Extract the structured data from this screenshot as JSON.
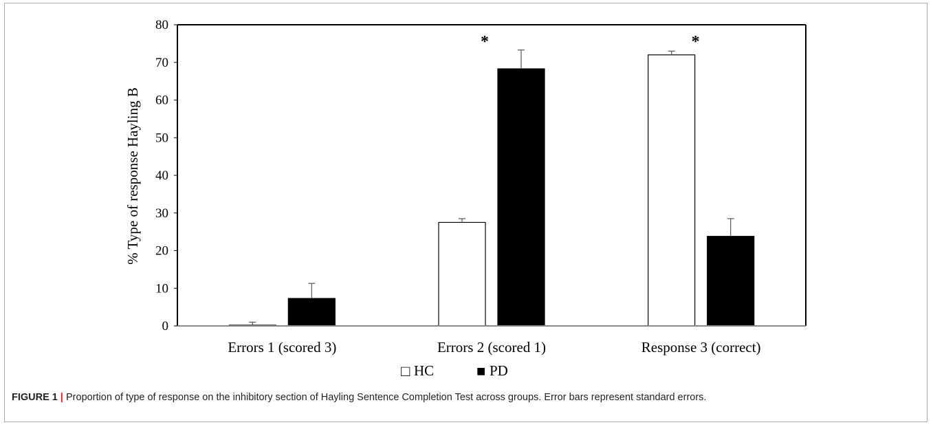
{
  "chart_data": {
    "type": "bar",
    "ylabel": "% Type of response Hayling B",
    "ylim": [
      0,
      80
    ],
    "yticks": [
      0,
      10,
      20,
      30,
      40,
      50,
      60,
      70,
      80
    ],
    "categories": [
      "Errors 1 (scored 3)",
      "Errors 2 (scored 1)",
      "Response 3 (correct)"
    ],
    "series": [
      {
        "name": "HC",
        "values": [
          0.2,
          27.5,
          72.0
        ],
        "errors": [
          0.8,
          1.0,
          1.0
        ],
        "fill": "#ffffff",
        "stroke": "#000000"
      },
      {
        "name": "PD",
        "values": [
          7.3,
          68.3,
          23.8
        ],
        "errors": [
          4.0,
          5.0,
          4.7
        ],
        "fill": "#000000",
        "stroke": "#000000"
      }
    ],
    "significance": [
      "",
      "*",
      "*"
    ],
    "legend": {
      "position": "bottom-center",
      "markers": [
        "□",
        "■"
      ]
    },
    "grid": false
  },
  "caption": {
    "label": "FIGURE 1",
    "separator": "|",
    "text": "Proportion of type of response on the inhibitory section of Hayling Sentence Completion Test across groups. Error bars represent standard errors."
  }
}
